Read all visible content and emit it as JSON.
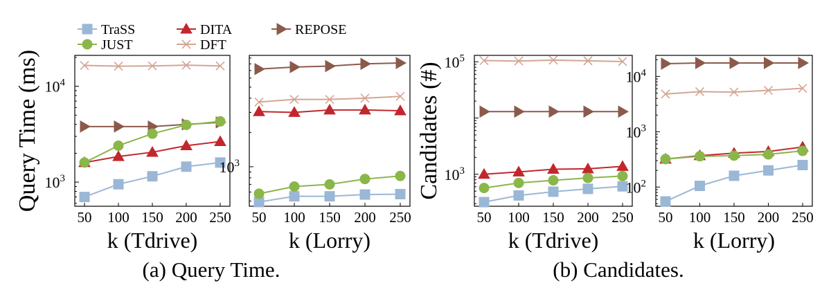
{
  "legend": [
    {
      "name": "TraSS",
      "color": "#9bb7d6",
      "marker": "square"
    },
    {
      "name": "DITA",
      "color": "#c1272d",
      "marker": "triangle-up"
    },
    {
      "name": "REPOSE",
      "color": "#8b5a4a",
      "marker": "triangle-right"
    },
    {
      "name": "JUST",
      "color": "#8ab64a",
      "marker": "circle"
    },
    {
      "name": "DFT",
      "color": "#d4a594",
      "marker": "x"
    }
  ],
  "captions": {
    "a": "(a)  Query Time.",
    "b": "(b)  Candidates."
  },
  "chart_data": [
    {
      "type": "line",
      "scale": "log",
      "ylabel": "Query Time (ms)",
      "xlabel": "k (Tdrive)",
      "x": [
        50,
        100,
        150,
        200,
        250
      ],
      "ylim": [
        560,
        21000
      ],
      "yticks": [
        1000,
        10000
      ],
      "series": [
        {
          "name": "TraSS",
          "values": [
            700,
            950,
            1150,
            1450,
            1600
          ]
        },
        {
          "name": "DITA",
          "values": [
            1600,
            1850,
            2050,
            2400,
            2650
          ]
        },
        {
          "name": "REPOSE",
          "values": [
            3800,
            3800,
            3800,
            4000,
            4200
          ]
        },
        {
          "name": "JUST",
          "values": [
            1600,
            2400,
            3200,
            3950,
            4300
          ]
        },
        {
          "name": "DFT",
          "values": [
            16500,
            16200,
            16300,
            16600,
            16300
          ]
        }
      ]
    },
    {
      "type": "line",
      "scale": "log",
      "ylabel": "",
      "xlabel": "k (Lorry)",
      "x": [
        50,
        100,
        150,
        200,
        250
      ],
      "ylim": [
        450,
        9500
      ],
      "yticks": [
        1000
      ],
      "series": [
        {
          "name": "TraSS",
          "values": [
            490,
            550,
            550,
            570,
            575
          ]
        },
        {
          "name": "DITA",
          "values": [
            3050,
            3000,
            3150,
            3150,
            3100
          ]
        },
        {
          "name": "REPOSE",
          "values": [
            7200,
            7500,
            7650,
            8000,
            8150
          ]
        },
        {
          "name": "JUST",
          "values": [
            580,
            670,
            700,
            780,
            830
          ]
        },
        {
          "name": "DFT",
          "values": [
            3700,
            3900,
            3900,
            4000,
            4150
          ]
        }
      ]
    },
    {
      "type": "line",
      "scale": "log",
      "ylabel": "Candidates (#)",
      "xlabel": "k (Tdrive)",
      "x": [
        50,
        100,
        150,
        200,
        250
      ],
      "ylim": [
        270,
        130000
      ],
      "yticks": [
        1000,
        100000
      ],
      "series": [
        {
          "name": "TraSS",
          "values": [
            320,
            420,
            490,
            550,
            610
          ]
        },
        {
          "name": "DITA",
          "values": [
            1000,
            1100,
            1230,
            1250,
            1380
          ]
        },
        {
          "name": "REPOSE",
          "values": [
            13000,
            13000,
            13000,
            13000,
            13000
          ]
        },
        {
          "name": "JUST",
          "values": [
            570,
            700,
            780,
            860,
            930
          ]
        },
        {
          "name": "DFT",
          "values": [
            105000,
            103000,
            107000,
            104000,
            101000
          ]
        }
      ]
    },
    {
      "type": "line",
      "scale": "log",
      "ylabel": "",
      "xlabel": "k (Lorry)",
      "x": [
        50,
        100,
        150,
        200,
        250
      ],
      "ylim": [
        45,
        24000
      ],
      "yticks": [
        100,
        1000,
        10000
      ],
      "series": [
        {
          "name": "TraSS",
          "values": [
            55,
            105,
            160,
            200,
            250
          ]
        },
        {
          "name": "DITA",
          "values": [
            320,
            370,
            410,
            440,
            530
          ]
        },
        {
          "name": "REPOSE",
          "values": [
            17000,
            17500,
            17500,
            17500,
            17500
          ]
        },
        {
          "name": "JUST",
          "values": [
            320,
            360,
            370,
            390,
            450
          ]
        },
        {
          "name": "DFT",
          "values": [
            4800,
            5300,
            5200,
            5600,
            6100
          ]
        }
      ]
    }
  ]
}
